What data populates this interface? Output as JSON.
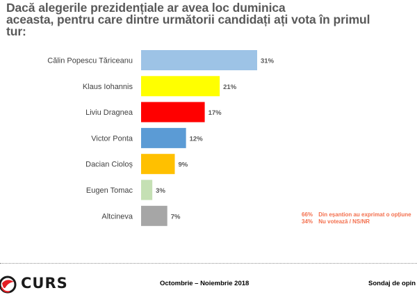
{
  "chart_data": {
    "type": "bar",
    "orientation": "horizontal",
    "title": "Dacă alegerile prezidențiale ar avea loc duminica aceasta, pentru care dintre următorii candidați ați vota în primul tur:",
    "categories": [
      "Călin Popescu Tăriceanu",
      "Klaus Iohannis",
      "Liviu Dragnea",
      "Victor Ponta",
      "Dacian Cioloș",
      "Eugen Tomac",
      "Altcineva"
    ],
    "values": [
      31,
      21,
      17,
      12,
      9,
      3,
      7
    ],
    "value_labels": [
      "31%",
      "21%",
      "17%",
      "12%",
      "9%",
      "3%",
      "7%"
    ],
    "colors": [
      "#9dc3e6",
      "#ffff00",
      "#ff0000",
      "#5b9bd5",
      "#ffc000",
      "#c5e0b4",
      "#a6a6a6"
    ],
    "unit": "%",
    "xlabel": "",
    "ylabel": "",
    "xlim": [
      0,
      31
    ],
    "grid": false,
    "legend": "none"
  },
  "title_lines": [
    "Dacă alegerile prezidențiale ar avea loc duminica",
    "aceasta, pentru care dintre următorii candidați ați vota în primul",
    "tur:"
  ],
  "notes": [
    {
      "pct": "66%",
      "text": "Din eșantion au exprimat o opțiune"
    },
    {
      "pct": "34%",
      "text": "Nu votează / NS/NR"
    }
  ],
  "notes_color": "#f36f4d",
  "footer": {
    "brand": "CURS",
    "period": "Octombrie – Noiembrie 2018",
    "right_text": "Sondaj de opin"
  }
}
